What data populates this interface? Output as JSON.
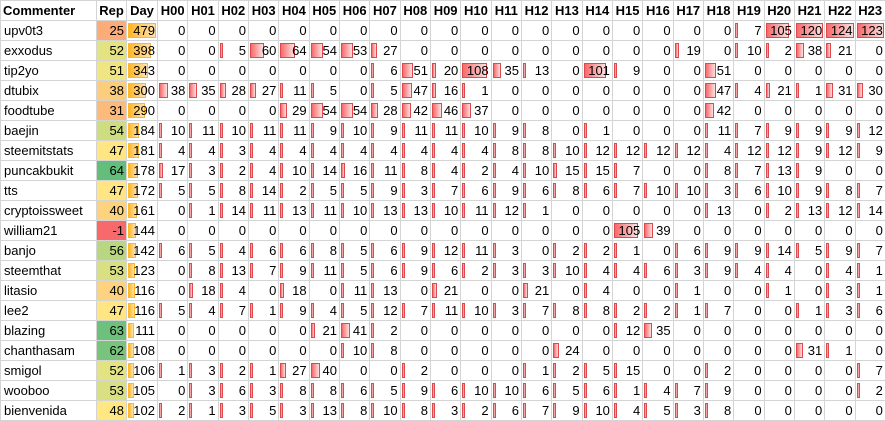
{
  "headers": [
    "Commenter",
    "Rep",
    "Day",
    "H00",
    "H01",
    "H02",
    "H03",
    "H04",
    "H05",
    "H06",
    "H07",
    "H08",
    "H09",
    "H10",
    "H11",
    "H12",
    "H13",
    "H14",
    "H15",
    "H16",
    "H17",
    "H18",
    "H19",
    "H20",
    "H21",
    "H22",
    "H23"
  ],
  "colors": {
    "rep_min": "#f8696b",
    "rep_mid": "#ffeb84",
    "rep_max": "#63be7b",
    "day_bar": "#ffb628",
    "hour_bar": "#f8696b"
  },
  "rows": [
    {
      "name": "upv0t3",
      "rep": 25,
      "day": 479,
      "hours": [
        0,
        0,
        0,
        0,
        0,
        0,
        0,
        0,
        0,
        0,
        0,
        0,
        0,
        0,
        0,
        0,
        0,
        0,
        0,
        7,
        105,
        120,
        124,
        123
      ]
    },
    {
      "name": "exxodus",
      "rep": 52,
      "day": 398,
      "hours": [
        0,
        0,
        5,
        60,
        64,
        54,
        53,
        27,
        0,
        0,
        0,
        0,
        0,
        0,
        0,
        0,
        0,
        19,
        0,
        10,
        2,
        38,
        21,
        0
      ]
    },
    {
      "name": "tip2yo",
      "rep": 51,
      "day": 343,
      "hours": [
        0,
        0,
        0,
        0,
        0,
        0,
        0,
        6,
        51,
        20,
        108,
        35,
        13,
        0,
        101,
        9,
        0,
        0,
        51,
        0,
        0,
        0,
        0,
        0
      ]
    },
    {
      "name": "dtubix",
      "rep": 38,
      "day": 300,
      "hours": [
        38,
        35,
        28,
        27,
        11,
        5,
        0,
        5,
        47,
        16,
        1,
        0,
        0,
        0,
        0,
        0,
        0,
        0,
        47,
        4,
        21,
        1,
        31,
        30
      ]
    },
    {
      "name": "foodtube",
      "rep": 31,
      "day": 290,
      "hours": [
        0,
        0,
        0,
        0,
        29,
        54,
        54,
        28,
        42,
        46,
        37,
        0,
        0,
        0,
        0,
        0,
        0,
        0,
        42,
        0,
        0,
        0,
        0,
        0
      ]
    },
    {
      "name": "baejin",
      "rep": 54,
      "day": 184,
      "hours": [
        10,
        11,
        10,
        11,
        11,
        9,
        10,
        9,
        11,
        11,
        10,
        9,
        8,
        0,
        1,
        0,
        0,
        0,
        11,
        7,
        9,
        9,
        9,
        12
      ]
    },
    {
      "name": "steemitstats",
      "rep": 47,
      "day": 181,
      "hours": [
        4,
        4,
        3,
        4,
        4,
        4,
        4,
        4,
        4,
        4,
        4,
        8,
        8,
        10,
        12,
        12,
        12,
        12,
        4,
        12,
        12,
        9,
        12,
        9
      ]
    },
    {
      "name": "puncakbukit",
      "rep": 64,
      "day": 178,
      "hours": [
        17,
        3,
        2,
        4,
        10,
        14,
        16,
        11,
        8,
        4,
        2,
        4,
        10,
        15,
        15,
        7,
        0,
        0,
        8,
        7,
        13,
        9,
        0,
        0
      ]
    },
    {
      "name": "tts",
      "rep": 47,
      "day": 172,
      "hours": [
        5,
        5,
        8,
        14,
        2,
        5,
        5,
        9,
        3,
        7,
        6,
        9,
        6,
        8,
        6,
        7,
        10,
        10,
        3,
        6,
        10,
        9,
        8,
        7
      ]
    },
    {
      "name": "cryptoissweet",
      "rep": 40,
      "day": 161,
      "hours": [
        0,
        1,
        14,
        11,
        13,
        11,
        10,
        13,
        13,
        10,
        11,
        12,
        1,
        0,
        0,
        0,
        0,
        0,
        13,
        0,
        2,
        13,
        12,
        14
      ]
    },
    {
      "name": "william21",
      "rep": -1,
      "day": 144,
      "hours": [
        0,
        0,
        0,
        0,
        0,
        0,
        0,
        0,
        0,
        0,
        0,
        0,
        0,
        0,
        0,
        105,
        39,
        0,
        0,
        0,
        0,
        0,
        0,
        0
      ]
    },
    {
      "name": "banjo",
      "rep": 56,
      "day": 142,
      "hours": [
        6,
        5,
        4,
        6,
        6,
        8,
        5,
        6,
        9,
        12,
        11,
        3,
        0,
        2,
        2,
        1,
        0,
        6,
        9,
        9,
        14,
        5,
        9,
        7
      ]
    },
    {
      "name": "steemthat",
      "rep": 53,
      "day": 123,
      "hours": [
        0,
        8,
        13,
        7,
        9,
        11,
        5,
        6,
        9,
        6,
        2,
        3,
        3,
        10,
        4,
        4,
        6,
        3,
        9,
        4,
        4,
        0,
        4,
        1
      ]
    },
    {
      "name": "litasio",
      "rep": 40,
      "day": 116,
      "hours": [
        0,
        18,
        4,
        0,
        18,
        0,
        11,
        13,
        0,
        21,
        0,
        0,
        21,
        0,
        4,
        0,
        0,
        1,
        0,
        0,
        1,
        0,
        3,
        1
      ]
    },
    {
      "name": "lee2",
      "rep": 47,
      "day": 116,
      "hours": [
        5,
        4,
        7,
        1,
        9,
        4,
        5,
        12,
        7,
        11,
        10,
        3,
        7,
        8,
        8,
        2,
        2,
        1,
        7,
        0,
        0,
        1,
        3,
        6
      ]
    },
    {
      "name": "blazing",
      "rep": 63,
      "day": 111,
      "hours": [
        0,
        0,
        0,
        0,
        0,
        21,
        41,
        2,
        0,
        0,
        0,
        0,
        0,
        0,
        0,
        12,
        35,
        0,
        0,
        0,
        0,
        0,
        0,
        0
      ]
    },
    {
      "name": "chanthasam",
      "rep": 62,
      "day": 108,
      "hours": [
        0,
        0,
        0,
        0,
        0,
        0,
        10,
        8,
        0,
        0,
        0,
        0,
        0,
        24,
        0,
        0,
        0,
        0,
        0,
        0,
        0,
        31,
        1,
        0
      ]
    },
    {
      "name": "smigol",
      "rep": 52,
      "day": 106,
      "hours": [
        1,
        3,
        2,
        1,
        27,
        40,
        0,
        0,
        2,
        0,
        0,
        0,
        1,
        2,
        5,
        15,
        0,
        0,
        2,
        0,
        0,
        0,
        0,
        7
      ]
    },
    {
      "name": "wooboo",
      "rep": 53,
      "day": 105,
      "hours": [
        0,
        3,
        6,
        3,
        8,
        8,
        6,
        5,
        9,
        6,
        10,
        10,
        6,
        5,
        6,
        1,
        4,
        7,
        9,
        0,
        0,
        0,
        0,
        2
      ]
    },
    {
      "name": "bienvenida",
      "rep": 48,
      "day": 102,
      "hours": [
        2,
        1,
        3,
        5,
        3,
        13,
        8,
        10,
        8,
        3,
        2,
        6,
        7,
        9,
        10,
        4,
        5,
        3,
        8,
        0,
        0,
        0,
        0,
        0
      ]
    }
  ]
}
